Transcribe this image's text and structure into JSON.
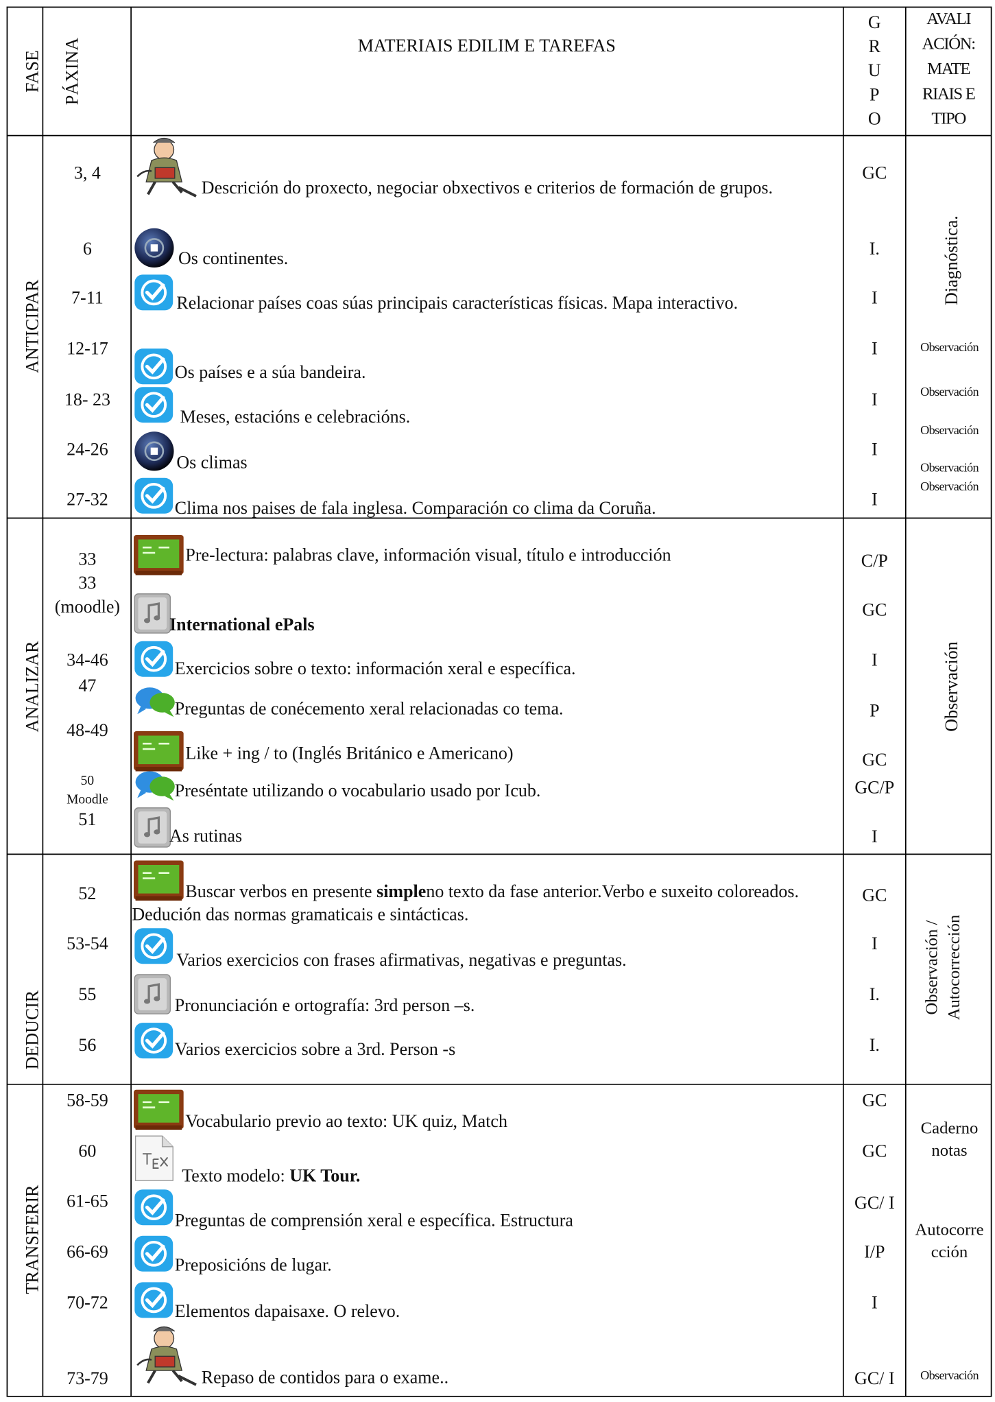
{
  "header": {
    "phase": "FASE",
    "page": "PÁXINA",
    "materials": "MATERIAIS EDILIM E TAREFAS",
    "group": [
      "G",
      "R",
      "U",
      "P",
      "O"
    ],
    "evaluation": [
      "AVALI",
      "ACIÓN:",
      "MATE",
      "RIAIS E",
      "TIPO"
    ]
  },
  "sections": [
    {
      "phase": "ANTICIPAR",
      "rows": [
        {
          "page": "3, 4",
          "icon": "teacher",
          "task": "Descrición do proxecto, negociar obxectivos e criterios de formación de grupos.",
          "group": "GC"
        },
        {
          "page": "6",
          "icon": "sphere",
          "task": "Os continentes.",
          "group": "I."
        },
        {
          "page": "7-11",
          "icon": "check",
          "task": "Relacionar países coas súas principais características físicas. Mapa interactivo.",
          "group": "I"
        },
        {
          "page": "12-17",
          "icon": "check",
          "task": "Os países e a súa bandeira.",
          "group": "I"
        },
        {
          "page": "18- 23",
          "icon": "check",
          "task": "Meses, estacións e celebracións.",
          "group": "I"
        },
        {
          "page": "24-26",
          "icon": "sphere",
          "task": "Os climas",
          "group": "I"
        },
        {
          "page": "27-32",
          "icon": "check",
          "task": "Clima nos paises de fala inglesa. Comparación co clima da Coruña.",
          "group": "I"
        }
      ],
      "evaluation": [
        "Diagnóstica.",
        "Observación",
        "Observación",
        "Observación",
        "Observación",
        "Observación"
      ]
    },
    {
      "phase": "ANALIZAR",
      "rows": [
        {
          "page": "33",
          "icon": "chalk",
          "task": "Pre-lectura: palabras clave, información visual, título e introducción",
          "group": "C/P"
        },
        {
          "page": [
            "33",
            "(moodle)"
          ],
          "icon": "music",
          "task": [
            {
              "text": "International ePals",
              "bold": true
            }
          ],
          "group": "GC"
        },
        {
          "page": "34-46",
          "icon": "check",
          "task": "Exercicios sobre o texto: información xeral e específica.",
          "group": "I"
        },
        {
          "page": "47",
          "icon": "speech",
          "task": "Preguntas de conécemento xeral relacionadas co tema.",
          "group": "P"
        },
        {
          "page": "48-49",
          "icon": "chalk",
          "task": "Like + ing / to (Inglés Británico e Americano)",
          "group": "GC"
        },
        {
          "page": [
            "50",
            "Moodle"
          ],
          "icon": "speech",
          "task": "Preséntate utilizando o vocabulario usado por Icub.",
          "group": "GC/P"
        },
        {
          "page": "51",
          "icon": "music",
          "task": "As rutinas",
          "group": "I"
        }
      ],
      "evaluation": [
        "Observación"
      ]
    },
    {
      "phase": "DEDUCIR",
      "rows": [
        {
          "page": "52",
          "icon": "chalk",
          "task": [
            {
              "text": "Buscar verbos en presente "
            },
            {
              "text": "simple",
              "bold": true
            },
            {
              "text": "no texto da fase anterior.Verbo e suxeito coloreados.  Dedución das  normas gramaticais e sintácticas."
            }
          ],
          "group": "GC"
        },
        {
          "page": "53-54",
          "icon": "check",
          "task": "Varios exercicios con frases afirmativas, negativas e preguntas.",
          "group": "I"
        },
        {
          "page": "55",
          "icon": "music",
          "task": "Pronunciación e ortografía: 3rd person –s.",
          "group": "I."
        },
        {
          "page": "56",
          "icon": "check",
          "task": "Varios exercicios sobre a 3rd. Person -s",
          "group": "I."
        }
      ],
      "evaluation": [
        [
          "Observación /",
          "Autocorrección"
        ]
      ]
    },
    {
      "phase": "TRANSFERIR",
      "rows": [
        {
          "page": "58-59",
          "icon": "chalk",
          "task": "Vocabulario previo ao texto: UK quiz, Match",
          "group": "GC"
        },
        {
          "page": "60",
          "icon": "tex",
          "task": [
            {
              "text": "Texto modelo: "
            },
            {
              "text": "UK Tour.",
              "bold": true
            }
          ],
          "group": "GC"
        },
        {
          "page": "61-65",
          "icon": "check",
          "task": "Preguntas de comprensión xeral e específica. Estructura",
          "group": "GC/ I"
        },
        {
          "page": "66-69",
          "icon": "check",
          "task": "Preposicións de lugar.",
          "group": "I/P"
        },
        {
          "page": "70-72",
          "icon": "check",
          "task": "Elementos dapaisaxe. O relevo.",
          "group": "I"
        },
        {
          "page": "73-79",
          "icon": "teacher",
          "task": "Repaso de contidos para o exame..",
          "group": "GC/ I"
        }
      ],
      "evaluation": [
        [
          "Caderno",
          "notas"
        ],
        [
          "Autocorre",
          "cción"
        ],
        "Observación"
      ]
    }
  ]
}
